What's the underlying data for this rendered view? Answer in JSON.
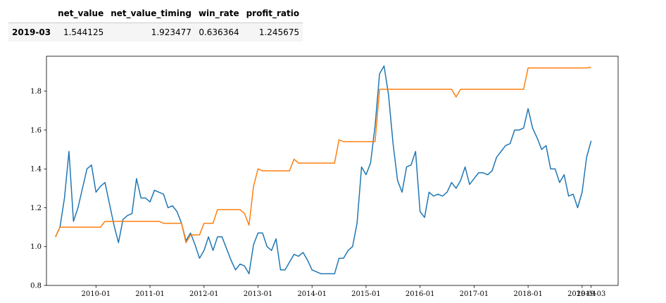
{
  "table": {
    "columns": [
      "net_value",
      "net_value_timing",
      "win_rate",
      "profit_ratio"
    ],
    "index": [
      "2019-03"
    ],
    "rows": [
      [
        1.544125,
        1.923477,
        0.636364,
        1.245675
      ]
    ]
  },
  "chart_data": {
    "type": "line",
    "x": [
      "2009-04",
      "2009-05",
      "2009-06",
      "2009-07",
      "2009-08",
      "2009-09",
      "2009-10",
      "2009-11",
      "2009-12",
      "2010-01",
      "2010-02",
      "2010-03",
      "2010-04",
      "2010-05",
      "2010-06",
      "2010-07",
      "2010-08",
      "2010-09",
      "2010-10",
      "2010-11",
      "2010-12",
      "2011-01",
      "2011-02",
      "2011-03",
      "2011-04",
      "2011-05",
      "2011-06",
      "2011-07",
      "2011-08",
      "2011-09",
      "2011-10",
      "2011-11",
      "2011-12",
      "2012-01",
      "2012-02",
      "2012-03",
      "2012-04",
      "2012-05",
      "2012-06",
      "2012-07",
      "2012-08",
      "2012-09",
      "2012-10",
      "2012-11",
      "2012-12",
      "2013-01",
      "2013-02",
      "2013-03",
      "2013-04",
      "2013-05",
      "2013-06",
      "2013-07",
      "2013-08",
      "2013-09",
      "2013-10",
      "2013-11",
      "2013-12",
      "2014-01",
      "2014-02",
      "2014-03",
      "2014-04",
      "2014-05",
      "2014-06",
      "2014-07",
      "2014-08",
      "2014-09",
      "2014-10",
      "2014-11",
      "2014-12",
      "2015-01",
      "2015-02",
      "2015-03",
      "2015-04",
      "2015-05",
      "2015-06",
      "2015-07",
      "2015-08",
      "2015-09",
      "2015-10",
      "2015-11",
      "2015-12",
      "2016-01",
      "2016-02",
      "2016-03",
      "2016-04",
      "2016-05",
      "2016-06",
      "2016-07",
      "2016-08",
      "2016-09",
      "2016-10",
      "2016-11",
      "2016-12",
      "2017-01",
      "2017-02",
      "2017-03",
      "2017-04",
      "2017-05",
      "2017-06",
      "2017-07",
      "2017-08",
      "2017-09",
      "2017-10",
      "2017-11",
      "2017-12",
      "2018-01",
      "2018-02",
      "2018-03",
      "2018-04",
      "2018-05",
      "2018-06",
      "2018-07",
      "2018-08",
      "2018-09",
      "2018-10",
      "2018-11",
      "2018-12",
      "2019-01",
      "2019-02",
      "2019-03"
    ],
    "series": [
      {
        "name": "net_value",
        "color": "#1f77b4",
        "values": [
          1.05,
          1.1,
          1.25,
          1.49,
          1.13,
          1.2,
          1.3,
          1.4,
          1.42,
          1.28,
          1.31,
          1.33,
          1.22,
          1.11,
          1.02,
          1.14,
          1.16,
          1.17,
          1.35,
          1.25,
          1.25,
          1.23,
          1.29,
          1.28,
          1.27,
          1.2,
          1.21,
          1.18,
          1.12,
          1.03,
          1.07,
          1.01,
          0.94,
          0.98,
          1.05,
          0.98,
          1.05,
          1.05,
          0.99,
          0.93,
          0.88,
          0.91,
          0.9,
          0.86,
          1.01,
          1.07,
          1.07,
          1.0,
          0.98,
          1.04,
          0.88,
          0.88,
          0.92,
          0.96,
          0.95,
          0.97,
          0.93,
          0.88,
          0.87,
          0.86,
          0.86,
          0.86,
          0.86,
          0.94,
          0.94,
          0.98,
          1.0,
          1.12,
          1.41,
          1.37,
          1.43,
          1.62,
          1.89,
          1.93,
          1.78,
          1.53,
          1.34,
          1.28,
          1.41,
          1.42,
          1.49,
          1.18,
          1.15,
          1.28,
          1.26,
          1.27,
          1.26,
          1.28,
          1.33,
          1.3,
          1.34,
          1.41,
          1.32,
          1.35,
          1.38,
          1.38,
          1.37,
          1.39,
          1.46,
          1.49,
          1.52,
          1.53,
          1.6,
          1.6,
          1.61,
          1.71,
          1.61,
          1.56,
          1.5,
          1.52,
          1.4,
          1.4,
          1.33,
          1.37,
          1.26,
          1.27,
          1.2,
          1.28,
          1.46,
          1.544125
        ]
      },
      {
        "name": "net_value_timing",
        "color": "#ff7f0e",
        "values": [
          1.05,
          1.1,
          1.1,
          1.1,
          1.1,
          1.1,
          1.1,
          1.1,
          1.1,
          1.1,
          1.1,
          1.13,
          1.13,
          1.13,
          1.13,
          1.13,
          1.13,
          1.13,
          1.13,
          1.13,
          1.13,
          1.13,
          1.13,
          1.13,
          1.12,
          1.12,
          1.12,
          1.12,
          1.12,
          1.02,
          1.06,
          1.06,
          1.06,
          1.12,
          1.12,
          1.12,
          1.19,
          1.19,
          1.19,
          1.19,
          1.19,
          1.19,
          1.17,
          1.11,
          1.31,
          1.4,
          1.39,
          1.39,
          1.39,
          1.39,
          1.39,
          1.39,
          1.39,
          1.45,
          1.43,
          1.43,
          1.43,
          1.43,
          1.43,
          1.43,
          1.43,
          1.43,
          1.43,
          1.55,
          1.54,
          1.54,
          1.54,
          1.54,
          1.54,
          1.54,
          1.54,
          1.54,
          1.81,
          1.81,
          1.81,
          1.81,
          1.81,
          1.81,
          1.81,
          1.81,
          1.81,
          1.81,
          1.81,
          1.81,
          1.81,
          1.81,
          1.81,
          1.81,
          1.81,
          1.77,
          1.81,
          1.81,
          1.81,
          1.81,
          1.81,
          1.81,
          1.81,
          1.81,
          1.81,
          1.81,
          1.81,
          1.81,
          1.81,
          1.81,
          1.81,
          1.92,
          1.92,
          1.92,
          1.92,
          1.92,
          1.92,
          1.92,
          1.92,
          1.92,
          1.92,
          1.92,
          1.92,
          1.92,
          1.92,
          1.923477
        ]
      }
    ],
    "xlim": [
      "2009-02",
      "2019-09"
    ],
    "xticks": [
      "2010-01",
      "2011-01",
      "2012-01",
      "2013-01",
      "2014-01",
      "2015-01",
      "2016-01",
      "2017-01",
      "2018-01",
      "2019-01",
      "2019-03"
    ],
    "ylim": [
      0.8,
      1.98
    ],
    "yticks": [
      0.8,
      {
        "value": 1,
        "label": "1.0"
      },
      1.2,
      1.4,
      1.6,
      1.8
    ],
    "grid": false
  }
}
